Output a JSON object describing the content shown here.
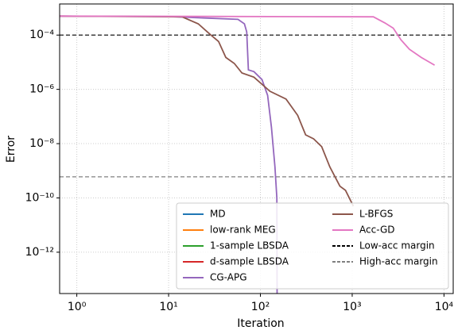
{
  "chart_data": {
    "type": "line",
    "x_label": "Iteration",
    "y_label": "Error",
    "log_x": true,
    "log_y": true,
    "grid": true,
    "legend": "lower right",
    "xlim": [
      0.65,
      12600
    ],
    "ylim": [
      3e-14,
      0.0014
    ],
    "xticks": [
      {
        "value": 1,
        "label": "10⁰"
      },
      {
        "value": 10,
        "label": "10¹"
      },
      {
        "value": 100,
        "label": "10²"
      },
      {
        "value": 1000,
        "label": "10³"
      },
      {
        "value": 10000,
        "label": "10⁴"
      }
    ],
    "yticks": [
      {
        "value": 1e-12,
        "label": "10⁻¹²"
      },
      {
        "value": 1e-10,
        "label": "10⁻¹⁰"
      },
      {
        "value": 1e-08,
        "label": "10⁻⁸"
      },
      {
        "value": 1e-06,
        "label": "10⁻⁶"
      },
      {
        "value": 0.0001,
        "label": "10⁻⁴"
      }
    ],
    "series": [
      {
        "name": "MD",
        "color": "#1f77b4",
        "x": [],
        "values": []
      },
      {
        "name": "low-rank MEG",
        "color": "#ff7f0e",
        "x": [],
        "values": []
      },
      {
        "name": "1-sample LBSDA",
        "color": "#2ca02c",
        "x": [],
        "values": []
      },
      {
        "name": "d-sample LBSDA",
        "color": "#d62728",
        "x": [],
        "values": []
      },
      {
        "name": "CG-APG",
        "color": "#9467bd",
        "x": [
          0.65,
          10,
          57,
          67,
          71,
          74,
          85,
          104,
          120,
          132,
          144,
          151,
          152
        ],
        "values": [
          0.0005,
          0.00048,
          0.00038,
          0.00026,
          0.00013,
          5.2e-06,
          4.5e-06,
          2.3e-06,
          6e-07,
          4e-08,
          1.4e-09,
          1e-10,
          3e-14
        ]
      },
      {
        "name": "L-BFGS",
        "color": "#8c564b",
        "x": [
          0.65,
          14,
          21,
          28,
          35,
          42,
          52,
          63,
          85,
          127,
          190,
          255,
          311,
          380,
          465,
          570,
          735,
          845,
          1030
        ],
        "values": [
          0.0005,
          0.00047,
          0.00026,
          0.00011,
          5.8e-05,
          1.5e-05,
          9e-06,
          4e-06,
          2.8e-06,
          8.5e-07,
          4.4e-07,
          1.1e-07,
          2.1e-08,
          1.5e-08,
          7.7e-09,
          1.4e-09,
          2.7e-10,
          1.9e-10,
          5e-11
        ]
      },
      {
        "name": "Acc-GD",
        "color": "#e377c2",
        "x": [
          0.65,
          1700,
          2270,
          2800,
          3400,
          4200,
          5650,
          7900
        ],
        "values": [
          0.0005,
          0.00047,
          0.00028,
          0.00018,
          6.7e-05,
          3e-05,
          1.5e-05,
          7.8e-06
        ]
      }
    ],
    "hlines": [
      {
        "name": "Low-acc margin",
        "color": "#000000",
        "value": 0.0001
      },
      {
        "name": "High-acc margin",
        "color": "#808080",
        "value": 6e-10
      }
    ]
  }
}
